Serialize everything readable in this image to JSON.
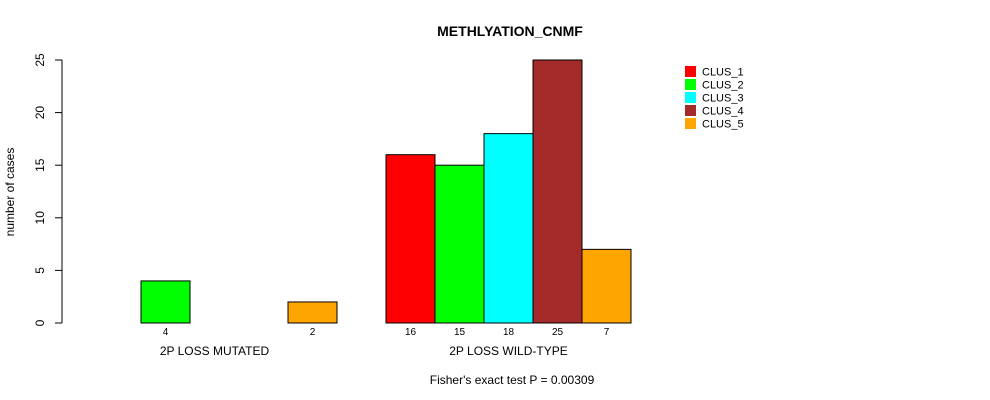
{
  "chart_data": {
    "type": "bar",
    "title": "METHLYATION_CNMF",
    "ylabel": "number of cases",
    "xlabel": "",
    "ylim": [
      0,
      25
    ],
    "yticks": [
      0,
      5,
      10,
      15,
      20,
      25
    ],
    "categories": [
      "2P LOSS MUTATED",
      "2P LOSS WILD-TYPE"
    ],
    "series": [
      {
        "name": "CLUS_1",
        "color": "#ff0000",
        "values": [
          0,
          16
        ]
      },
      {
        "name": "CLUS_2",
        "color": "#00ff00",
        "values": [
          4,
          15
        ]
      },
      {
        "name": "CLUS_3",
        "color": "#00ffff",
        "values": [
          0,
          18
        ]
      },
      {
        "name": "CLUS_4",
        "color": "#a52a2a",
        "values": [
          0,
          25
        ]
      },
      {
        "name": "CLUS_5",
        "color": "#ffa500",
        "values": [
          2,
          7
        ]
      }
    ],
    "count_labels": [
      [
        "",
        "4",
        "",
        "",
        "2"
      ],
      [
        "16",
        "15",
        "18",
        "25",
        "7"
      ]
    ],
    "legend": [
      "CLUS_1",
      "CLUS_2",
      "CLUS_3",
      "CLUS_4",
      "CLUS_5"
    ],
    "legend_position": "top-right",
    "footnote": "Fisher's exact test P = 0.00309"
  }
}
